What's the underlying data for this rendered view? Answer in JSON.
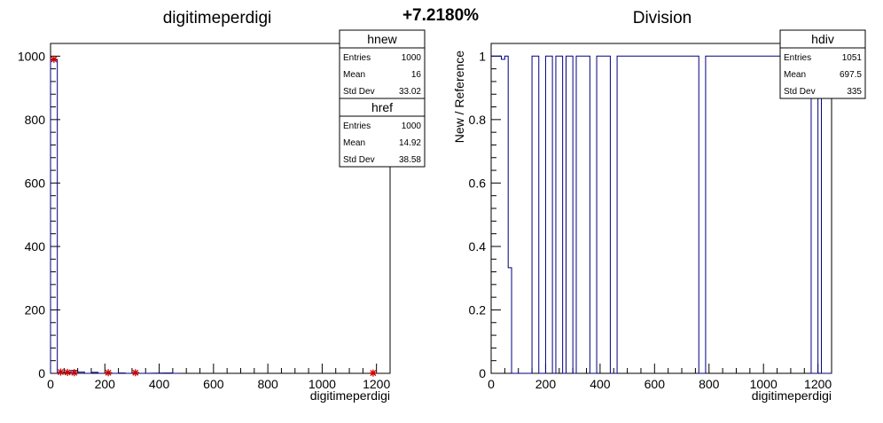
{
  "page": {
    "percent_label": "+7.2180%"
  },
  "chart_data": [
    {
      "type": "histogram",
      "title": "digitimeperdigi",
      "xlabel": "digitimeperdigi",
      "ylabel": "",
      "xlim": [
        0,
        1250
      ],
      "ylim": [
        0,
        1040
      ],
      "xticks": [
        0,
        200,
        400,
        600,
        800,
        1000,
        1200
      ],
      "yticks": [
        0,
        200,
        400,
        600,
        800,
        1000
      ],
      "bin_width": 25,
      "series": [
        {
          "name": "hnew",
          "color": "#000080",
          "style": "step",
          "bins": [
            {
              "x": 0,
              "y": 988
            },
            {
              "x": 25,
              "y": 0
            },
            {
              "x": 50,
              "y": 3
            },
            {
              "x": 75,
              "y": 9
            },
            {
              "x": 100,
              "y": 4
            },
            {
              "x": 125,
              "y": 0
            },
            {
              "x": 150,
              "y": 3
            },
            {
              "x": 175,
              "y": 0
            },
            {
              "x": 200,
              "y": 2
            },
            {
              "x": 225,
              "y": 0
            },
            {
              "x": 250,
              "y": 1
            },
            {
              "x": 275,
              "y": 0
            },
            {
              "x": 300,
              "y": 2
            },
            {
              "x": 325,
              "y": 0
            },
            {
              "x": 425,
              "y": 1
            },
            {
              "x": 450,
              "y": 0
            }
          ]
        },
        {
          "name": "href",
          "color": "#cc0000",
          "style": "markers",
          "marker": "star",
          "points": [
            {
              "x": 12.5,
              "y": 990
            },
            {
              "x": 37.5,
              "y": 4
            },
            {
              "x": 62.5,
              "y": 3
            },
            {
              "x": 87.5,
              "y": 2
            },
            {
              "x": 212.5,
              "y": 2
            },
            {
              "x": 312.5,
              "y": 2
            },
            {
              "x": 1187.5,
              "y": 1
            }
          ]
        }
      ],
      "stats": [
        {
          "name": "hnew",
          "entries": "1000",
          "mean": "16",
          "std_dev": "33.02"
        },
        {
          "name": "href",
          "entries": "1000",
          "mean": "14.92",
          "std_dev": "38.58"
        }
      ],
      "stat_labels": {
        "entries": "Entries",
        "mean": "Mean",
        "std_dev": "Std Dev"
      }
    },
    {
      "type": "histogram",
      "title": "Division",
      "xlabel": "digitimeperdigi",
      "ylabel": "New / Reference",
      "xlim": [
        0,
        1250
      ],
      "ylim": [
        0,
        1.04
      ],
      "xticks": [
        0,
        200,
        400,
        600,
        800,
        1000,
        1200
      ],
      "yticks": [
        0,
        0.2,
        0.4,
        0.6,
        0.8,
        1
      ],
      "bin_width": 12.5,
      "series": [
        {
          "name": "hdiv",
          "color": "#000080",
          "style": "step",
          "segments": [
            {
              "x0": 0,
              "x1": 37.5,
              "y": 1
            },
            {
              "x0": 37.5,
              "x1": 50,
              "y": 0.99
            },
            {
              "x0": 50,
              "x1": 62.5,
              "y": 1
            },
            {
              "x0": 62.5,
              "x1": 75,
              "y": 0.333
            },
            {
              "x0": 75,
              "x1": 150,
              "y": 0
            },
            {
              "x0": 150,
              "x1": 175,
              "y": 1
            },
            {
              "x0": 175,
              "x1": 200,
              "y": 0
            },
            {
              "x0": 200,
              "x1": 225,
              "y": 1
            },
            {
              "x0": 225,
              "x1": 237.5,
              "y": 0
            },
            {
              "x0": 237.5,
              "x1": 262.5,
              "y": 1
            },
            {
              "x0": 262.5,
              "x1": 275,
              "y": 0
            },
            {
              "x0": 275,
              "x1": 300,
              "y": 1
            },
            {
              "x0": 300,
              "x1": 312.5,
              "y": 0
            },
            {
              "x0": 312.5,
              "x1": 362.5,
              "y": 1
            },
            {
              "x0": 362.5,
              "x1": 387.5,
              "y": 0
            },
            {
              "x0": 387.5,
              "x1": 437.5,
              "y": 1
            },
            {
              "x0": 437.5,
              "x1": 462.5,
              "y": 0
            },
            {
              "x0": 462.5,
              "x1": 762.5,
              "y": 1
            },
            {
              "x0": 762.5,
              "x1": 787.5,
              "y": 0
            },
            {
              "x0": 787.5,
              "x1": 1175,
              "y": 1
            },
            {
              "x0": 1175,
              "x1": 1200,
              "y": 0
            },
            {
              "x0": 1200,
              "x1": 1212.5,
              "y": 1
            },
            {
              "x0": 1212.5,
              "x1": 1250,
              "y": 0
            }
          ]
        }
      ],
      "stats": [
        {
          "name": "hdiv",
          "entries": "1051",
          "mean": "697.5",
          "std_dev": "335"
        }
      ],
      "stat_labels": {
        "entries": "Entries",
        "mean": "Mean",
        "std_dev": "Std Dev"
      }
    }
  ]
}
